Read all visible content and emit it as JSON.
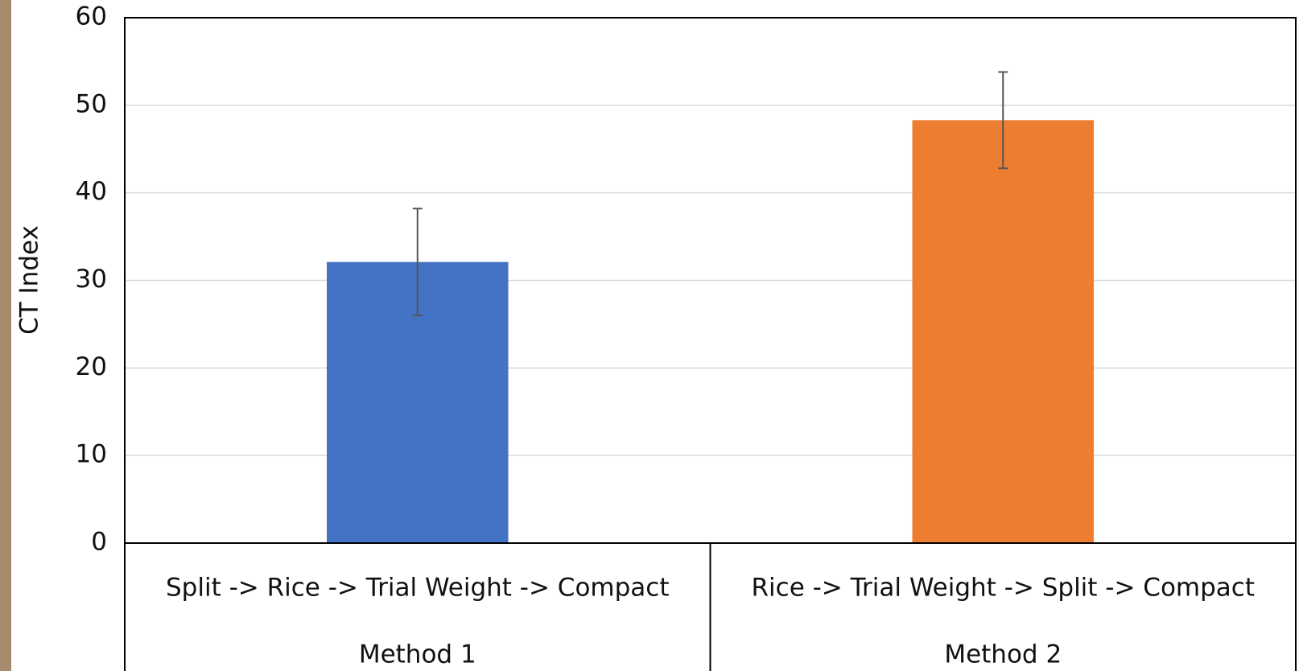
{
  "chart_data": {
    "type": "bar",
    "y_label": "CT Index",
    "categories": [
      "Split -> Rice -> Trial Weight -> Compact",
      "Rice -> Trial Weight -> Split -> Compact"
    ],
    "groups": [
      "Method 1",
      "Method 2"
    ],
    "values": [
      32.1,
      48.3
    ],
    "errors": [
      6.1,
      5.5
    ],
    "colors": [
      "#4472c4",
      "#ed7d31"
    ],
    "ylim": [
      0,
      60
    ],
    "yticks": [
      0,
      10,
      20,
      30,
      40,
      50,
      60
    ],
    "grid": true
  }
}
